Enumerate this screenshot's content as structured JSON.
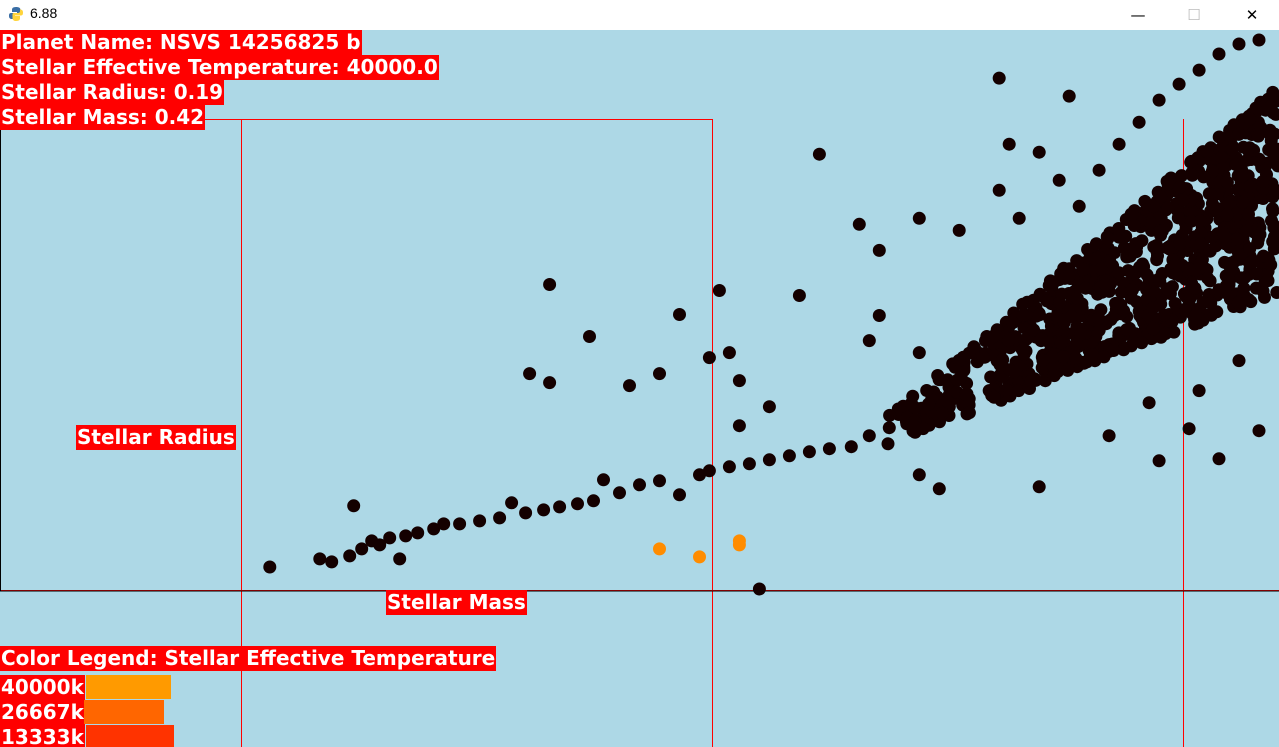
{
  "window": {
    "title": "6.88",
    "minimize_glyph": "—",
    "maximize_glyph": "☐",
    "close_glyph": "✕",
    "icon": "python-snake-icon"
  },
  "info": {
    "planet_name": "Planet Name: NSVS 14256825 b",
    "temperature": "Stellar Effective Temperature: 40000.0",
    "radius": "Stellar Radius: 0.19",
    "mass": "Stellar Mass: 0.42"
  },
  "axes": {
    "y_label": "Stellar Radius",
    "x_label": "Stellar Mass"
  },
  "legend": {
    "title": "Color Legend: Stellar Effective Temperature",
    "items": [
      {
        "label": "40000k",
        "color": "#ff9a00",
        "level": 0.85
      },
      {
        "label": "26667k",
        "color": "#ff6600",
        "level": 0.8
      },
      {
        "label": "13333k",
        "color": "#ff3300",
        "level": 0.88
      }
    ]
  },
  "colors": {
    "background": "#add8e6",
    "label_bg": "#ff0000",
    "point_dark": "#140000",
    "point_hot": "#ff8c00",
    "axis": "#000000",
    "grid": "#ff0000"
  },
  "chart_data": {
    "type": "scatter",
    "xlabel": "Stellar Mass",
    "ylabel": "Stellar Radius",
    "xlim": [
      0,
      6.4
    ],
    "ylim": [
      0,
      5.6
    ],
    "grid": true,
    "legend": "bottom-left",
    "series": [
      {
        "name": "13333k",
        "color": "#140000",
        "points": [
          [
            1.35,
            0.24
          ],
          [
            1.6,
            0.32
          ],
          [
            1.66,
            0.29
          ],
          [
            1.75,
            0.35
          ],
          [
            1.81,
            0.42
          ],
          [
            1.86,
            0.5
          ],
          [
            1.9,
            0.46
          ],
          [
            1.95,
            0.53
          ],
          [
            2.0,
            0.32
          ],
          [
            2.03,
            0.55
          ],
          [
            2.09,
            0.58
          ],
          [
            2.17,
            0.62
          ],
          [
            2.22,
            0.67
          ],
          [
            2.3,
            0.67
          ],
          [
            2.4,
            0.7
          ],
          [
            2.5,
            0.73
          ],
          [
            2.56,
            0.88
          ],
          [
            2.63,
            0.78
          ],
          [
            2.72,
            0.81
          ],
          [
            2.8,
            0.84
          ],
          [
            2.89,
            0.87
          ],
          [
            2.97,
            0.9
          ],
          [
            3.02,
            1.11
          ],
          [
            3.1,
            0.98
          ],
          [
            3.2,
            1.06
          ],
          [
            3.3,
            1.1
          ],
          [
            3.4,
            0.96
          ],
          [
            3.5,
            1.16
          ],
          [
            3.55,
            1.2
          ],
          [
            3.65,
            1.24
          ],
          [
            3.75,
            1.27
          ],
          [
            3.85,
            1.31
          ],
          [
            3.95,
            1.35
          ],
          [
            4.05,
            1.39
          ],
          [
            4.15,
            1.42
          ],
          [
            4.26,
            1.44
          ],
          [
            4.35,
            1.55
          ],
          [
            4.45,
            1.63
          ],
          [
            4.55,
            1.7
          ],
          [
            4.65,
            1.78
          ],
          [
            4.75,
            1.84
          ],
          [
            4.85,
            1.92
          ],
          [
            4.95,
            2.0
          ],
          [
            5.05,
            2.08
          ],
          [
            5.15,
            2.12
          ],
          [
            5.25,
            2.2
          ],
          [
            5.35,
            2.3
          ],
          [
            5.45,
            2.4
          ],
          [
            5.55,
            2.46
          ],
          [
            5.65,
            2.56
          ],
          [
            5.75,
            2.66
          ],
          [
            5.85,
            2.76
          ],
          [
            5.95,
            2.86
          ],
          [
            6.05,
            2.96
          ],
          [
            6.15,
            3.06
          ],
          [
            6.25,
            3.16
          ],
          [
            6.35,
            3.3
          ],
          [
            1.77,
            0.85
          ],
          [
            2.75,
            3.06
          ],
          [
            2.95,
            2.54
          ],
          [
            2.65,
            2.17
          ],
          [
            2.75,
            2.08
          ],
          [
            3.15,
            2.05
          ],
          [
            3.3,
            2.17
          ],
          [
            3.4,
            2.76
          ],
          [
            3.6,
            3.0
          ],
          [
            3.55,
            2.33
          ],
          [
            3.65,
            2.38
          ],
          [
            3.7,
            2.1
          ],
          [
            3.7,
            1.65
          ],
          [
            3.85,
            1.84
          ],
          [
            4.0,
            2.95
          ],
          [
            4.1,
            4.36
          ],
          [
            4.3,
            3.66
          ],
          [
            4.4,
            3.4
          ],
          [
            4.6,
            3.72
          ],
          [
            4.8,
            3.6
          ],
          [
            5.0,
            5.12
          ],
          [
            5.05,
            4.46
          ],
          [
            5.35,
            4.94
          ],
          [
            5.45,
            3.25
          ],
          [
            5.55,
            3.34
          ],
          [
            5.25,
            3.05
          ],
          [
            5.55,
            1.55
          ],
          [
            5.8,
            1.3
          ],
          [
            5.2,
            1.04
          ],
          [
            4.7,
            1.02
          ],
          [
            4.6,
            1.16
          ],
          [
            5.0,
            4.0
          ],
          [
            5.1,
            3.72
          ],
          [
            5.2,
            4.38
          ],
          [
            5.3,
            4.1
          ],
          [
            5.4,
            3.84
          ],
          [
            5.5,
            4.2
          ],
          [
            5.6,
            4.46
          ],
          [
            5.7,
            4.68
          ],
          [
            5.8,
            4.9
          ],
          [
            5.9,
            5.06
          ],
          [
            6.0,
            5.2
          ],
          [
            6.1,
            5.36
          ],
          [
            6.2,
            5.46
          ],
          [
            6.3,
            5.5
          ],
          [
            6.1,
            1.32
          ],
          [
            6.3,
            1.6
          ],
          [
            6.2,
            2.3
          ],
          [
            6.0,
            2.0
          ],
          [
            5.95,
            1.62
          ],
          [
            5.75,
            1.88
          ],
          [
            4.35,
            2.5
          ],
          [
            4.6,
            2.38
          ],
          [
            3.8,
            0.02
          ],
          [
            4.4,
            2.75
          ]
        ]
      },
      {
        "name": "40000k",
        "color": "#ff8c00",
        "points": [
          [
            3.3,
            0.42
          ],
          [
            3.5,
            0.34
          ],
          [
            3.7,
            0.46
          ],
          [
            3.7,
            0.5
          ]
        ]
      }
    ]
  }
}
